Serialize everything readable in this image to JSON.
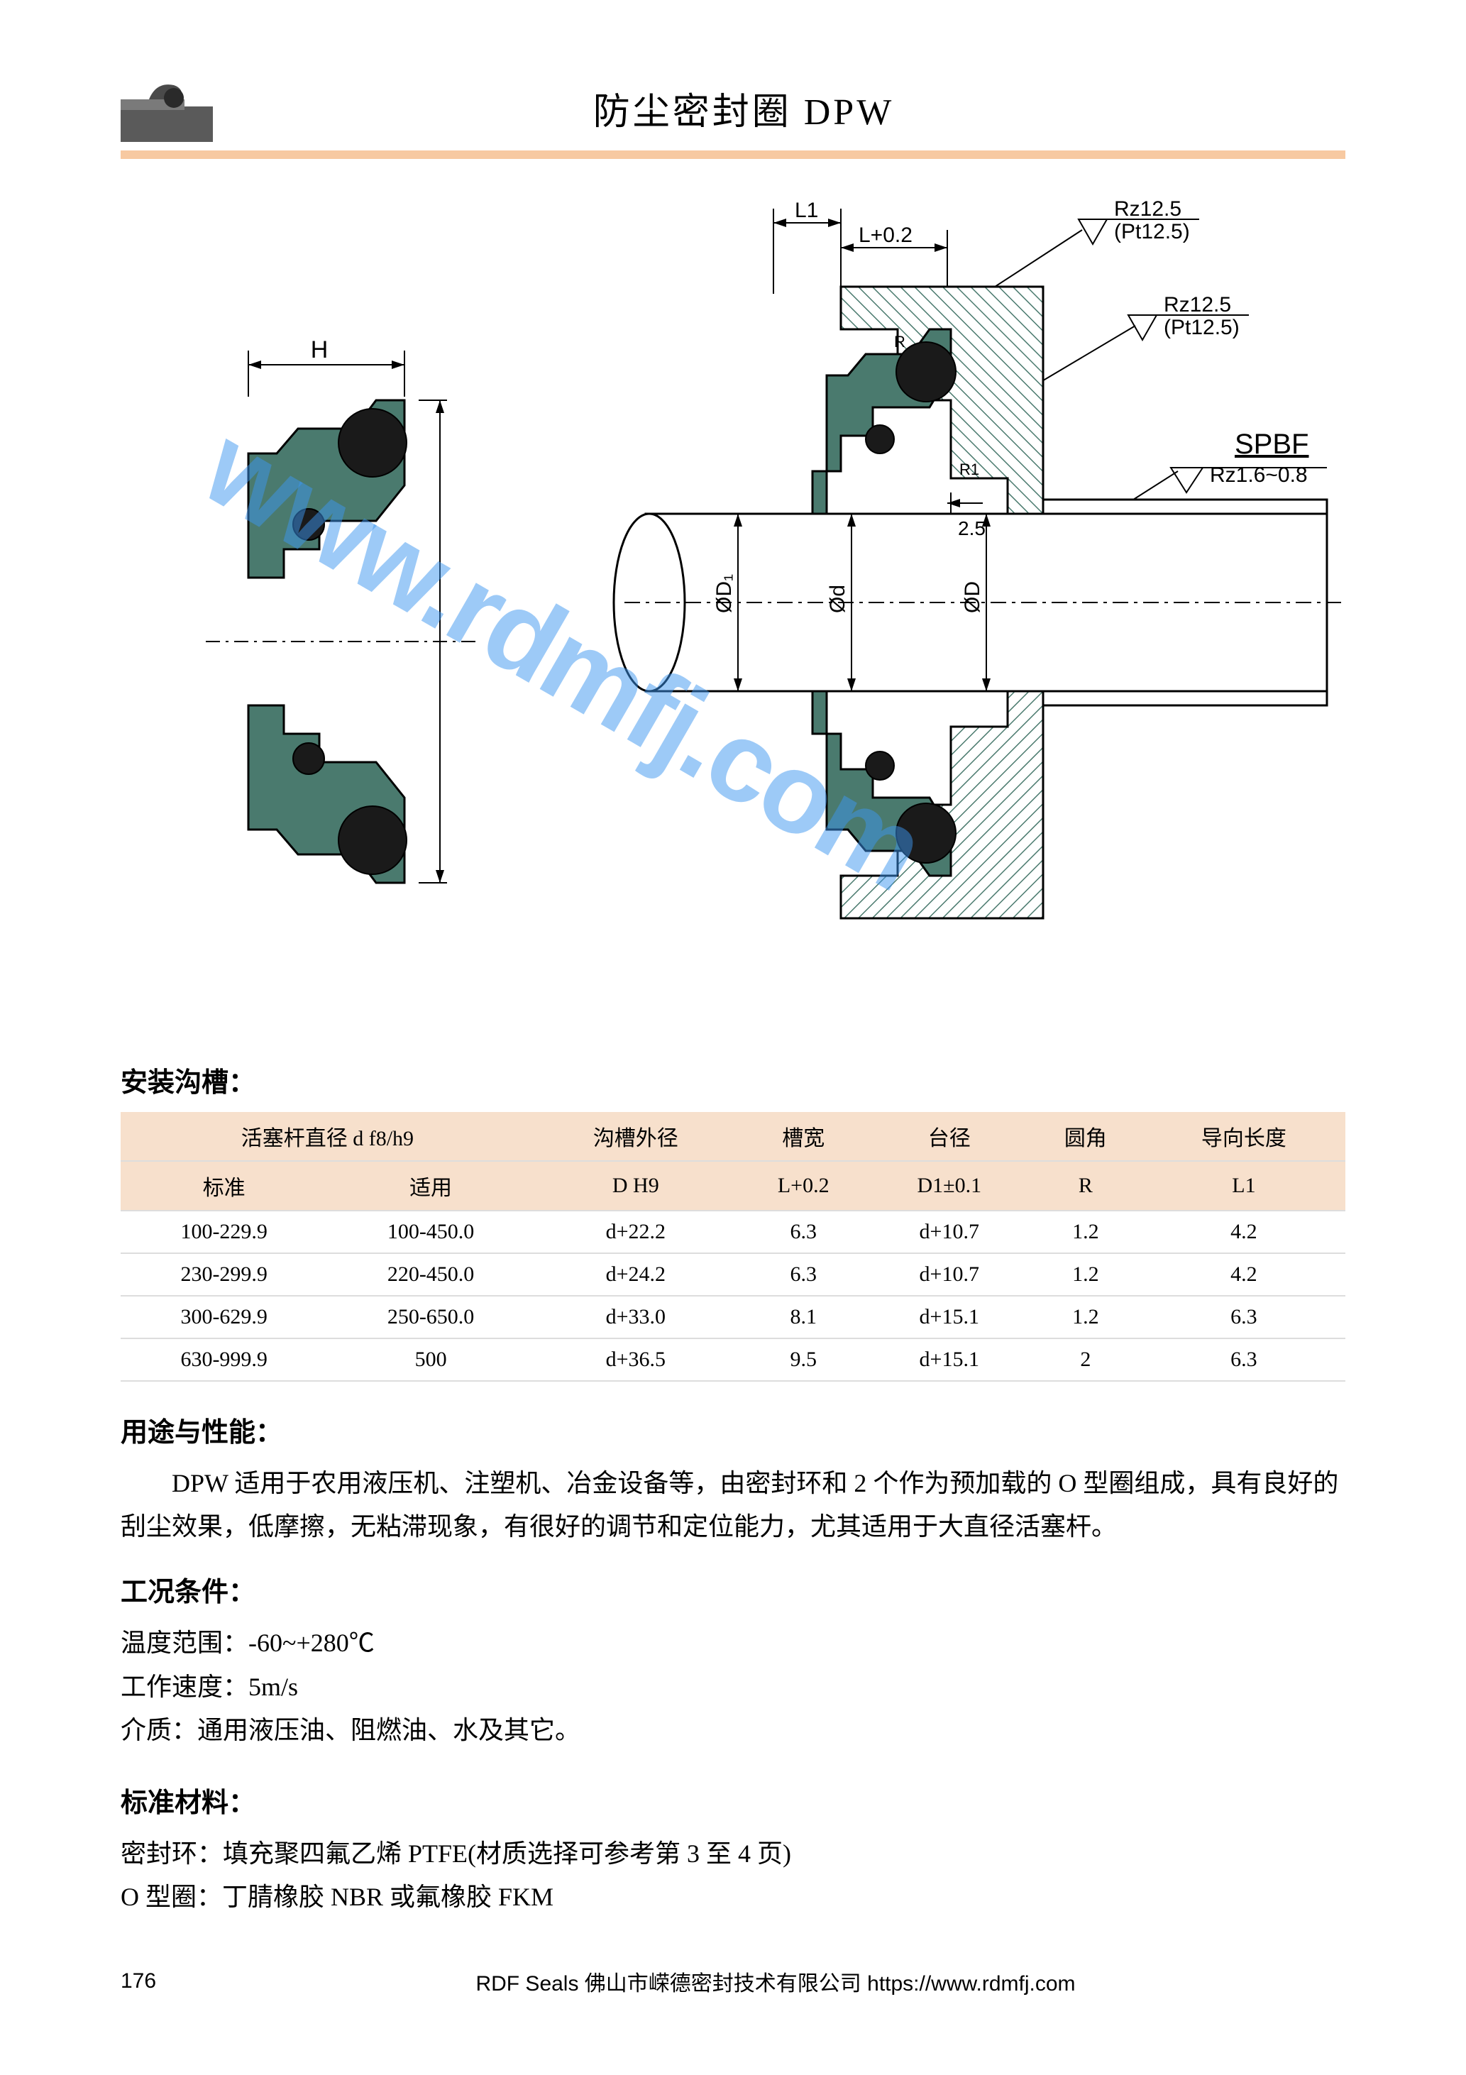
{
  "header": {
    "title": "防尘密封圈 DPW"
  },
  "diagram": {
    "left": {
      "dim_label": "H",
      "seal_color": "#4a7a6e",
      "oring_color": "#1a1a1a"
    },
    "right": {
      "dim_L1": "L1",
      "dim_L02": "L+0.2",
      "note1_line1": "Rz12.5",
      "note1_line2": "(Pt12.5)",
      "note2_line1": "Rz12.5",
      "note2_line2": "(Pt12.5)",
      "spbf": "SPBF",
      "spbf_sub": "Rz1.6~0.8",
      "gap_25": "2.5",
      "dia_D1": "ØD₁",
      "dia_d": "Ød",
      "dia_D": "ØD",
      "r_label": "R",
      "r1_label": "R1",
      "hatch_color": "#4a7a6e",
      "seal_color": "#4a7a6e",
      "oring_color": "#1a1a1a",
      "shaft_fill": "#ffffff"
    }
  },
  "watermark": "www.rdmfj.com",
  "sections": {
    "groove": {
      "heading": "安装沟槽：",
      "header_row1": [
        "活塞杆直径 d f8/h9",
        "沟槽外径",
        "槽宽",
        "台径",
        "圆角",
        "导向长度"
      ],
      "header_row2": [
        "标准",
        "适用",
        "D H9",
        "L+0.2",
        "D1±0.1",
        "R",
        "L1"
      ],
      "rows": [
        [
          "100-229.9",
          "100-450.0",
          "d+22.2",
          "6.3",
          "d+10.7",
          "1.2",
          "4.2"
        ],
        [
          "230-299.9",
          "220-450.0",
          "d+24.2",
          "6.3",
          "d+10.7",
          "1.2",
          "4.2"
        ],
        [
          "300-629.9",
          "250-650.0",
          "d+33.0",
          "8.1",
          "d+15.1",
          "1.2",
          "6.3"
        ],
        [
          "630-999.9",
          "500",
          "d+36.5",
          "9.5",
          "d+15.1",
          "2",
          "6.3"
        ]
      ],
      "header_bg": "#f7e0cc",
      "border_color": "#dddddd"
    },
    "usage": {
      "heading": "用途与性能：",
      "text": "DPW 适用于农用液压机、注塑机、冶金设备等，由密封环和 2 个作为预加载的 O 型圈组成，具有良好的刮尘效果，低摩擦，无粘滞现象，有很好的调节和定位能力，尤其适用于大直径活塞杆。"
    },
    "conditions": {
      "heading": "工况条件：",
      "lines": [
        "温度范围：-60~+280℃",
        "工作速度：5m/s",
        "介质：通用液压油、阻燃油、水及其它。"
      ]
    },
    "material": {
      "heading": "标准材料：",
      "lines": [
        "密封环：填充聚四氟乙烯 PTFE(材质选择可参考第 3 至 4 页)",
        "O 型圈：丁腈橡胶 NBR 或氟橡胶 FKM"
      ]
    }
  },
  "footer": {
    "page": "176",
    "text": "RDF Seals   佛山市嵘德密封技术有限公司   https://www.rdmfj.com"
  }
}
